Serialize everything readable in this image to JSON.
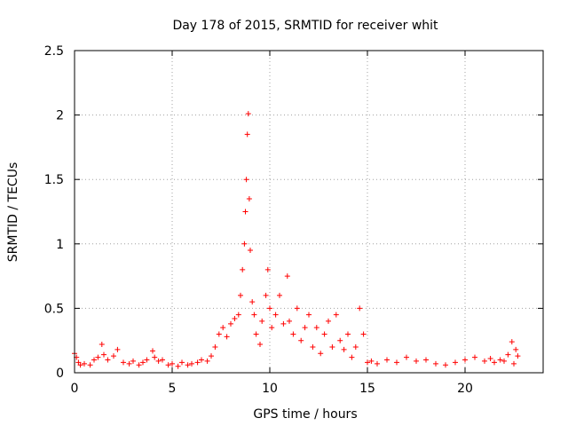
{
  "chart_data": {
    "type": "scatter",
    "title": "Day 178 of 2015, SRMTID for receiver whit",
    "xlabel": "GPS time / hours",
    "ylabel": "SRMTID / TECUs",
    "xlim": [
      0,
      24
    ],
    "ylim": [
      0,
      2.5
    ],
    "xticks": [
      0,
      5,
      10,
      15,
      20
    ],
    "xtick_labels": [
      "0",
      "5",
      "10",
      "15",
      "20"
    ],
    "yticks": [
      0,
      0.5,
      1,
      1.5,
      2,
      2.5
    ],
    "ytick_labels": [
      "0",
      "0.5",
      "1",
      "1.5",
      "2",
      "2.5"
    ],
    "grid": true,
    "marker": "+",
    "series": [
      {
        "name": "SRMTID",
        "color": "#ff0000",
        "x": [
          0.0,
          0.1,
          0.2,
          0.3,
          0.5,
          0.8,
          1.0,
          1.2,
          1.4,
          1.5,
          1.7,
          2.0,
          2.2,
          2.5,
          2.8,
          3.0,
          3.3,
          3.5,
          3.7,
          4.0,
          4.1,
          4.3,
          4.5,
          4.8,
          5.0,
          5.3,
          5.5,
          5.8,
          6.0,
          6.3,
          6.5,
          6.8,
          7.0,
          7.2,
          7.4,
          7.6,
          7.8,
          8.0,
          8.2,
          8.4,
          8.5,
          8.6,
          8.7,
          8.75,
          8.8,
          8.85,
          8.9,
          8.95,
          9.0,
          9.1,
          9.2,
          9.3,
          9.5,
          9.6,
          9.8,
          9.9,
          10.0,
          10.1,
          10.3,
          10.5,
          10.7,
          10.9,
          11.0,
          11.2,
          11.4,
          11.6,
          11.8,
          12.0,
          12.2,
          12.4,
          12.6,
          12.8,
          13.0,
          13.2,
          13.4,
          13.6,
          13.8,
          14.0,
          14.2,
          14.4,
          14.6,
          14.8,
          15.0,
          15.2,
          15.5,
          16.0,
          16.5,
          17.0,
          17.5,
          18.0,
          18.5,
          19.0,
          19.5,
          20.0,
          20.5,
          21.0,
          21.3,
          21.5,
          21.8,
          22.0,
          22.2,
          22.4,
          22.5,
          22.6,
          22.7
        ],
        "y": [
          0.15,
          0.12,
          0.08,
          0.06,
          0.07,
          0.06,
          0.1,
          0.12,
          0.22,
          0.14,
          0.1,
          0.13,
          0.18,
          0.08,
          0.07,
          0.09,
          0.06,
          0.08,
          0.1,
          0.17,
          0.12,
          0.09,
          0.1,
          0.06,
          0.07,
          0.05,
          0.08,
          0.06,
          0.07,
          0.08,
          0.1,
          0.09,
          0.13,
          0.2,
          0.3,
          0.35,
          0.28,
          0.38,
          0.42,
          0.45,
          0.6,
          0.8,
          1.0,
          1.25,
          1.5,
          1.85,
          2.01,
          1.35,
          0.95,
          0.55,
          0.45,
          0.3,
          0.22,
          0.4,
          0.6,
          0.8,
          0.5,
          0.35,
          0.45,
          0.6,
          0.38,
          0.75,
          0.4,
          0.3,
          0.5,
          0.25,
          0.35,
          0.45,
          0.2,
          0.35,
          0.15,
          0.3,
          0.4,
          0.2,
          0.45,
          0.25,
          0.18,
          0.3,
          0.12,
          0.2,
          0.5,
          0.3,
          0.08,
          0.09,
          0.07,
          0.1,
          0.08,
          0.12,
          0.09,
          0.1,
          0.07,
          0.06,
          0.08,
          0.1,
          0.12,
          0.09,
          0.11,
          0.08,
          0.1,
          0.09,
          0.14,
          0.24,
          0.07,
          0.18,
          0.13
        ]
      }
    ]
  }
}
